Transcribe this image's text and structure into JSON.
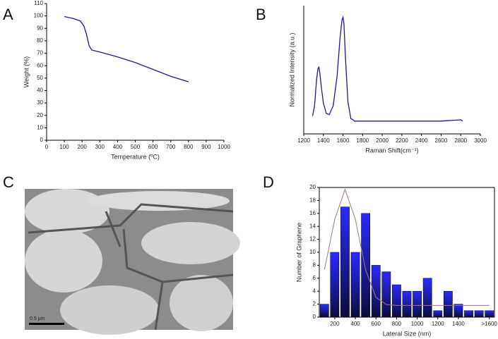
{
  "chart_data": [
    {
      "type": "line",
      "label": "A",
      "x_label": "Temperature (ºC)",
      "y_label": "Weight (%)",
      "color": "#1a1a9e",
      "x": [
        100,
        150,
        190,
        210,
        225,
        240,
        255,
        300,
        400,
        500,
        600,
        700,
        800
      ],
      "values": [
        99.5,
        98,
        96,
        92,
        85,
        76,
        72.5,
        71,
        67,
        62.5,
        57,
        51.5,
        47
      ],
      "xlim": [
        0,
        1000
      ],
      "xticks": [
        0,
        100,
        200,
        300,
        400,
        500,
        600,
        700,
        800,
        900,
        1000
      ],
      "ylim": [
        0,
        110
      ],
      "yticks": [
        0,
        10,
        20,
        30,
        40,
        50,
        60,
        70,
        80,
        90,
        100,
        110
      ]
    },
    {
      "type": "line",
      "label": "B",
      "x_label": "Raman Shift(cm⁻¹)",
      "y_label": "Normalized Intensity (a.u.)",
      "color": "#1a1a9e",
      "x": [
        1290,
        1310,
        1330,
        1345,
        1355,
        1365,
        1380,
        1400,
        1430,
        1460,
        1500,
        1540,
        1570,
        1590,
        1600,
        1610,
        1625,
        1650,
        1680,
        1720,
        1800,
        2000,
        2200,
        2400,
        2600,
        2800,
        2820
      ],
      "values": [
        0.14,
        0.22,
        0.42,
        0.51,
        0.52,
        0.47,
        0.36,
        0.24,
        0.16,
        0.15,
        0.22,
        0.45,
        0.75,
        0.89,
        0.91,
        0.86,
        0.6,
        0.25,
        0.12,
        0.1,
        0.1,
        0.1,
        0.1,
        0.1,
        0.1,
        0.11,
        0.1
      ],
      "xlim": [
        1200,
        3000
      ],
      "xticks": [
        1200,
        1400,
        1600,
        1800,
        2000,
        2200,
        2400,
        2600,
        2800,
        3000
      ],
      "ylim": [
        0,
        1
      ]
    },
    {
      "type": "bar",
      "label": "D",
      "x_label": "Lateral Size (nm)",
      "y_label": "Number of Graphene",
      "color": "#2a2aff",
      "fit_color": "#a07878",
      "categories": [
        null,
        "200",
        null,
        "400",
        null,
        "600",
        null,
        "800",
        null,
        "1000",
        null,
        "1200",
        null,
        "1400",
        null,
        null,
        ">1600"
      ],
      "values": [
        2,
        10,
        17,
        10,
        16,
        8,
        7,
        5,
        4,
        4,
        6,
        1,
        4,
        2,
        1,
        1,
        1
      ],
      "fit": [
        7.3,
        15.1,
        19.7,
        15.1,
        7.3,
        3.05,
        1.96,
        1.8,
        1.8,
        1.8,
        1.8,
        1.8,
        1.8,
        1.8,
        1.8,
        1.8,
        1.8
      ],
      "ylim": [
        0,
        20
      ],
      "yticks": [
        0,
        2,
        4,
        6,
        8,
        10,
        12,
        14,
        16,
        18,
        20
      ]
    }
  ],
  "image_panel": {
    "label": "C",
    "scale_bar": "0.5 µm"
  }
}
